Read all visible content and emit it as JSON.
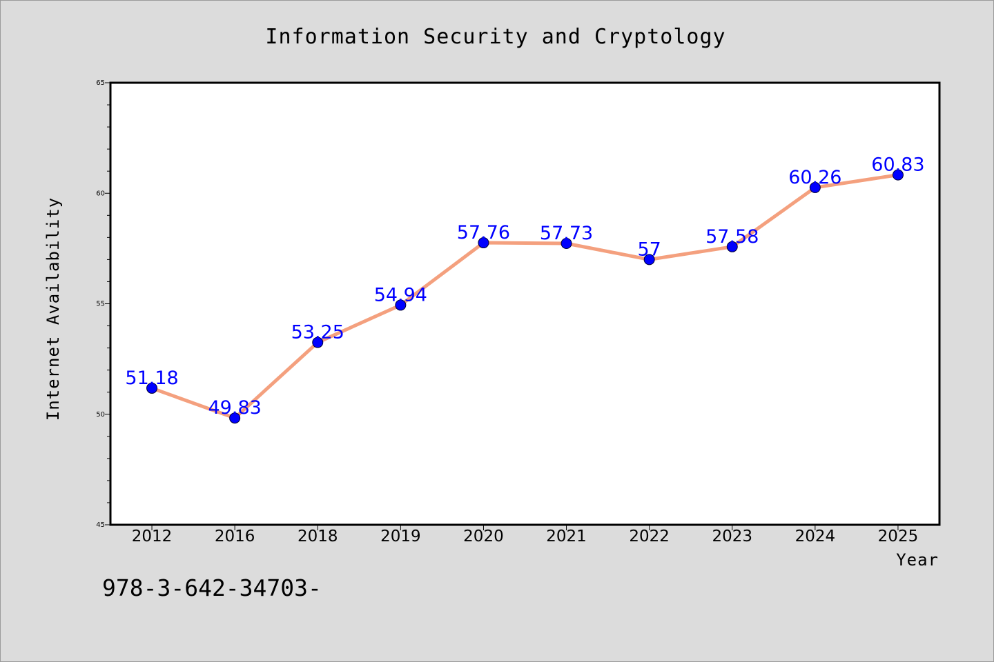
{
  "colors": {
    "background": "#dcdcdc",
    "plot_background": "#ffffff",
    "line": "#f4a07e",
    "marker": "#0000ff",
    "data_label": "#0000ff"
  },
  "footnote": "978-3-642-34703-",
  "chart_data": {
    "type": "line",
    "title": "Information Security and Cryptology",
    "xlabel": "Year",
    "ylabel": "Internet Availability",
    "categories": [
      "2012",
      "2016",
      "2018",
      "2019",
      "2020",
      "2021",
      "2022",
      "2023",
      "2024",
      "2025"
    ],
    "values": [
      51.18,
      49.83,
      53.25,
      54.94,
      57.76,
      57.73,
      57,
      57.58,
      60.26,
      60.83
    ],
    "data_labels": [
      "51.18",
      "49.83",
      "53.25",
      "54.94",
      "57.76",
      "57.73",
      "57",
      "57.58",
      "60.26",
      "60.83"
    ],
    "ylim": [
      45,
      65
    ],
    "yticks": [
      45,
      50,
      55,
      60,
      65
    ],
    "grid": false,
    "legend": "none"
  }
}
